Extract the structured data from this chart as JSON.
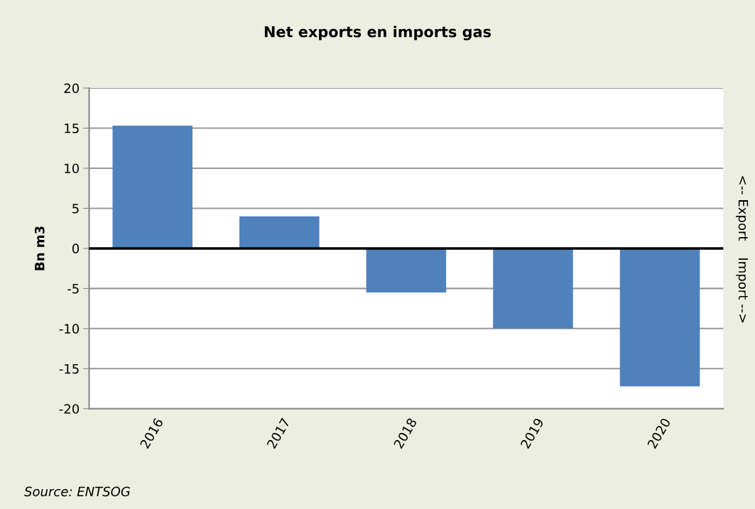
{
  "chart_data": {
    "type": "bar",
    "title": "Net exports en imports gas",
    "ylabel": "Bn m3",
    "y2label": "<-- Export    Import -->",
    "categories": [
      "2016",
      "2017",
      "2018",
      "2019",
      "2020"
    ],
    "values": [
      15.3,
      4.0,
      -5.5,
      -10.0,
      -17.2
    ],
    "color": "#4f81bd",
    "ylim": [
      -20,
      20
    ],
    "yticks": [
      -20,
      -15,
      -10,
      -5,
      0,
      5,
      10,
      15,
      20
    ],
    "grid": "y",
    "ref_lines": [
      {
        "axis": "y",
        "value": 0,
        "color": "#000000"
      }
    ],
    "annotations": [
      "Source: ENTSOG"
    ]
  }
}
